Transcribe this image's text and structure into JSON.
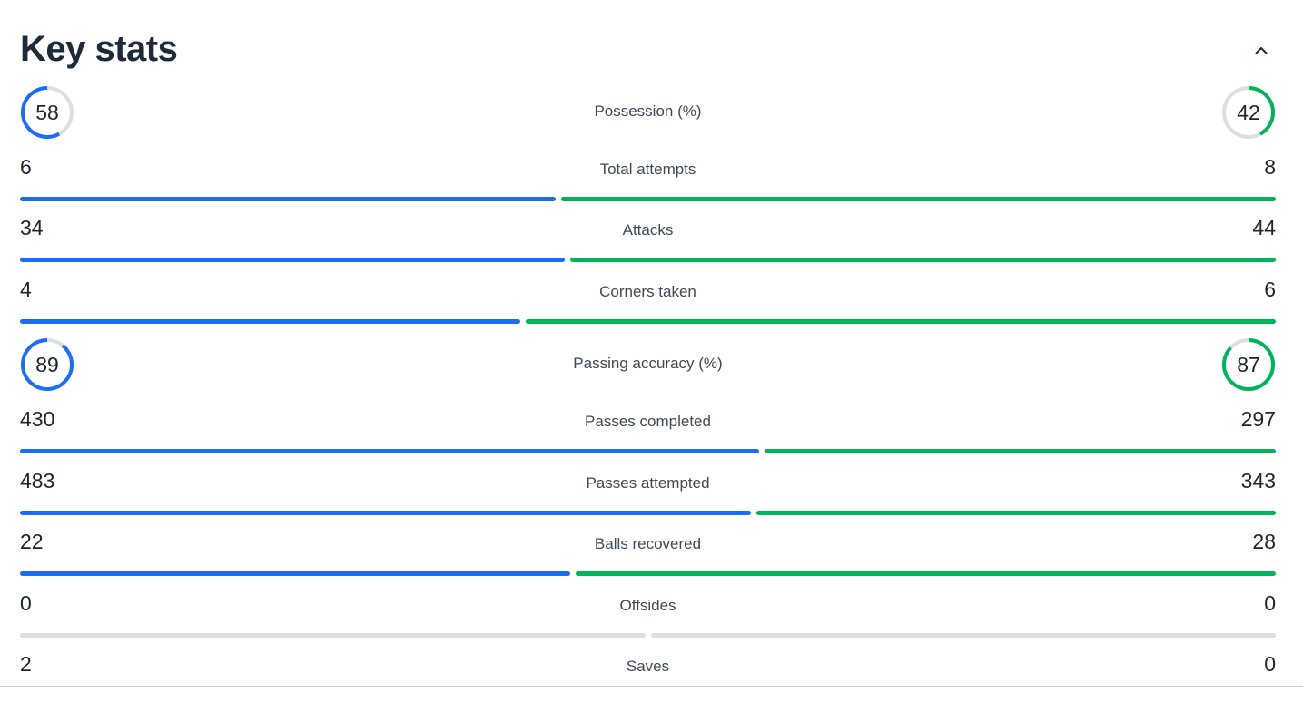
{
  "title": "Key stats",
  "colors": {
    "home": "#1a6ef5",
    "away": "#00b45a",
    "track": "#dcdedf",
    "text": "#1c2530"
  },
  "collapse_icon": "chevron-up-icon",
  "stats": [
    {
      "label": "Possession (%)",
      "home": 58,
      "away": 42,
      "type": "ring"
    },
    {
      "label": "Total attempts",
      "home": 6,
      "away": 8,
      "type": "bar"
    },
    {
      "label": "Attacks",
      "home": 34,
      "away": 44,
      "type": "bar"
    },
    {
      "label": "Corners taken",
      "home": 4,
      "away": 6,
      "type": "bar"
    },
    {
      "label": "Passing accuracy (%)",
      "home": 89,
      "away": 87,
      "type": "ring"
    },
    {
      "label": "Passes completed",
      "home": 430,
      "away": 297,
      "type": "bar"
    },
    {
      "label": "Passes attempted",
      "home": 483,
      "away": 343,
      "type": "bar"
    },
    {
      "label": "Balls recovered",
      "home": 22,
      "away": 28,
      "type": "bar"
    },
    {
      "label": "Offsides",
      "home": 0,
      "away": 0,
      "type": "bar"
    },
    {
      "label": "Saves",
      "home": 2,
      "away": 0,
      "type": "bar"
    }
  ]
}
